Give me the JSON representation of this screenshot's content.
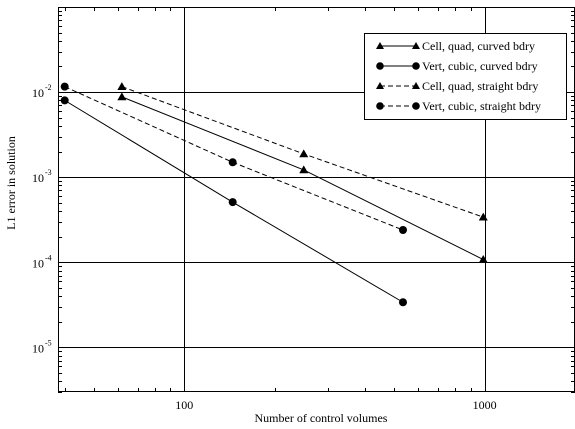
{
  "chart_data": {
    "type": "line",
    "xscale": "log",
    "yscale": "log",
    "xlabel": "Number of control volumes",
    "ylabel": "L1 error in solution",
    "xlim": [
      38,
      2000
    ],
    "ylim": [
      3e-06,
      0.1
    ],
    "grid": true,
    "legend_position": "top-right",
    "x_ticks": [
      {
        "value": 100,
        "label": "100"
      },
      {
        "value": 1000,
        "label": "1000"
      }
    ],
    "y_ticks": [
      {
        "value": 1e-05,
        "base": "10",
        "exp": "-5"
      },
      {
        "value": 0.0001,
        "base": "10",
        "exp": "-4"
      },
      {
        "value": 0.001,
        "base": "10",
        "exp": "-3"
      },
      {
        "value": 0.01,
        "base": "10",
        "exp": "-2"
      }
    ],
    "series": [
      {
        "name": "Cell, quad, curved bdry",
        "marker": "triangle",
        "dashed": false,
        "points": [
          [
            62,
            0.0088
          ],
          [
            250,
            0.00122
          ],
          [
            990,
            0.000108
          ]
        ]
      },
      {
        "name": "Vert, cubic, curved bdry",
        "marker": "circle",
        "dashed": false,
        "points": [
          [
            40,
            0.008
          ],
          [
            145,
            0.00051
          ],
          [
            535,
            3.4e-05
          ]
        ]
      },
      {
        "name": "Cell, quad, straight bdry",
        "marker": "triangle",
        "dashed": true,
        "points": [
          [
            62,
            0.0116
          ],
          [
            250,
            0.00188
          ],
          [
            990,
            0.00034
          ]
        ]
      },
      {
        "name": "Vert, cubic, straight bdry",
        "marker": "circle",
        "dashed": true,
        "points": [
          [
            40,
            0.0116
          ],
          [
            145,
            0.0015
          ],
          [
            535,
            0.00024
          ]
        ]
      }
    ]
  }
}
